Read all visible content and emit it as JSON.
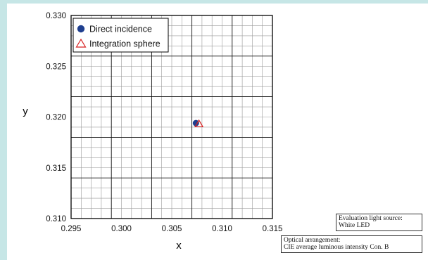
{
  "chart_data": {
    "type": "scatter",
    "xlabel": "x",
    "ylabel": "y",
    "xlim": [
      0.295,
      0.315
    ],
    "ylim": [
      0.31,
      0.33
    ],
    "x_ticks": [
      "0.295",
      "0.300",
      "0.305",
      "0.310",
      "0.315"
    ],
    "y_ticks": [
      "0.310",
      "0.315",
      "0.320",
      "0.325",
      "0.330"
    ],
    "grid": true,
    "legend_position": "top-left",
    "series": [
      {
        "name": "Direct incidence",
        "marker": "filled-circle",
        "color": "#1f3f8f",
        "x": [
          0.3074
        ],
        "y": [
          0.3194
        ]
      },
      {
        "name": "Integration sphere",
        "marker": "open-triangle",
        "color": "#d62020",
        "x": [
          0.3077
        ],
        "y": [
          0.3193
        ]
      }
    ]
  },
  "notes": {
    "light_source_title": "Evaluation light source:",
    "light_source_value": "White LED",
    "arrangement_title": "Optical arrangement:",
    "arrangement_value": "CIE average luminous intensity Con. B"
  }
}
